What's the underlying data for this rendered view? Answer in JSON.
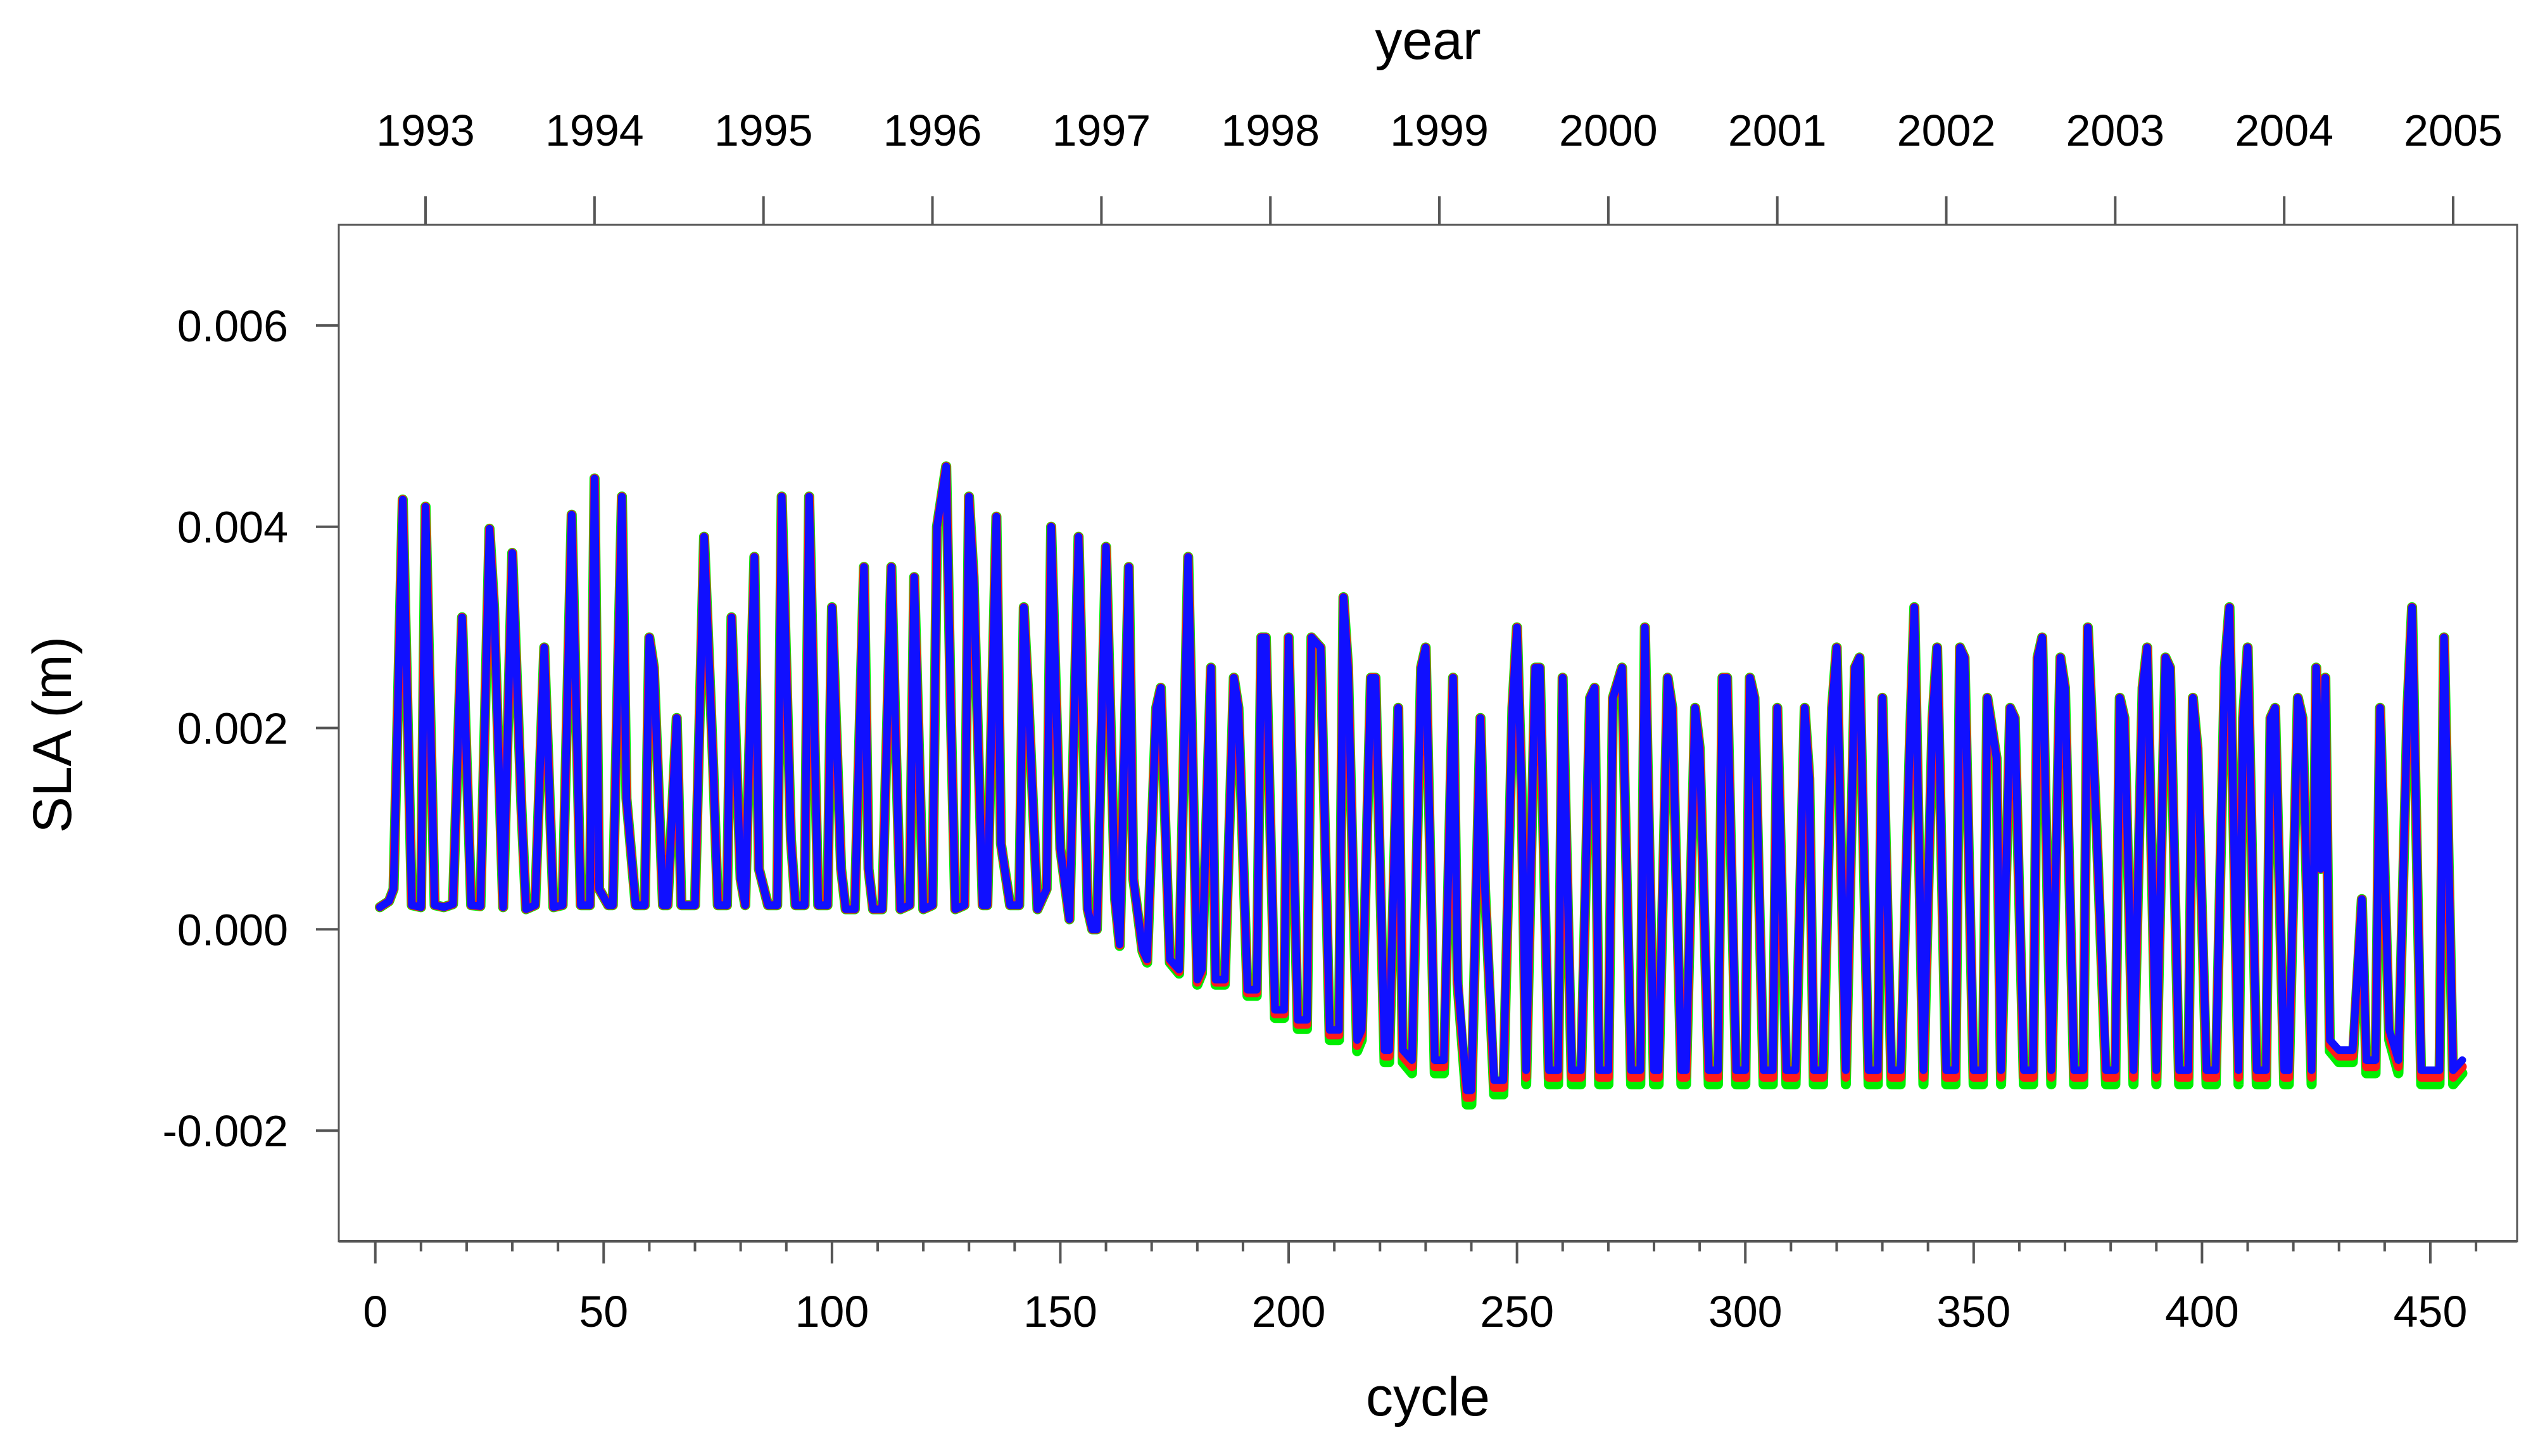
{
  "chart_data": {
    "type": "line",
    "xlabel": "cycle",
    "ylabel": "SLA (m)",
    "top_axis_label": "year",
    "xlim": [
      -8,
      469
    ],
    "ylim": [
      -0.0031,
      0.007
    ],
    "x_ticks": [
      0,
      50,
      100,
      150,
      200,
      250,
      300,
      350,
      400,
      450
    ],
    "y_ticks": [
      -0.002,
      0.0,
      0.002,
      0.004,
      0.006
    ],
    "y_tick_labels": [
      "-0.002",
      "0.000",
      "0.002",
      "0.004",
      "0.006"
    ],
    "top_ticks": [
      {
        "label": "1993",
        "cycle": 11
      },
      {
        "label": "1994",
        "cycle": 48
      },
      {
        "label": "1995",
        "cycle": 85
      },
      {
        "label": "1996",
        "cycle": 122
      },
      {
        "label": "1997",
        "cycle": 159
      },
      {
        "label": "1998",
        "cycle": 196
      },
      {
        "label": "1999",
        "cycle": 233
      },
      {
        "label": "2000",
        "cycle": 270
      },
      {
        "label": "2001",
        "cycle": 307
      },
      {
        "label": "2002",
        "cycle": 344
      },
      {
        "label": "2003",
        "cycle": 381
      },
      {
        "label": "2004",
        "cycle": 418
      },
      {
        "label": "2005",
        "cycle": 455
      }
    ],
    "grid": false,
    "legend": "none",
    "series": [
      {
        "color": "#00ee00",
        "y_offset": -0.00014,
        "width": 16,
        "points": [
          [
            1,
            0.00022
          ],
          [
            3,
            0.00028
          ],
          [
            4,
            0.0004
          ],
          [
            6,
            0.00427
          ],
          [
            8,
            0.00024
          ],
          [
            10,
            0.00022
          ],
          [
            11,
            0.0042
          ],
          [
            13,
            0.00024
          ],
          [
            15,
            0.00022
          ],
          [
            17,
            0.00025
          ],
          [
            19,
            0.0031
          ],
          [
            21,
            0.00024
          ],
          [
            23,
            0.00023
          ],
          [
            25,
            0.00398
          ],
          [
            26,
            0.0032
          ],
          [
            28,
            0.00022
          ],
          [
            30,
            0.00374
          ],
          [
            32,
            0.0012
          ],
          [
            33,
            0.0002
          ],
          [
            35,
            0.00024
          ],
          [
            37,
            0.0028
          ],
          [
            39,
            0.00022
          ],
          [
            41,
            0.00024
          ],
          [
            43,
            0.00412
          ],
          [
            45,
            0.00024
          ],
          [
            47,
            0.00024
          ],
          [
            48,
            0.00448
          ],
          [
            49,
            0.0004
          ],
          [
            51,
            0.00024
          ],
          [
            52,
            0.00024
          ],
          [
            54,
            0.0043
          ],
          [
            55,
            0.0013
          ],
          [
            57,
            0.00024
          ],
          [
            59,
            0.00024
          ],
          [
            60,
            0.0029
          ],
          [
            61,
            0.0026
          ],
          [
            63,
            0.00024
          ],
          [
            64,
            0.00024
          ],
          [
            66,
            0.0021
          ],
          [
            67,
            0.00024
          ],
          [
            69,
            0.00024
          ],
          [
            70,
            0.00024
          ],
          [
            72,
            0.0039
          ],
          [
            74,
            0.0016
          ],
          [
            75,
            0.00024
          ],
          [
            77,
            0.00024
          ],
          [
            78,
            0.0031
          ],
          [
            80,
            0.0005
          ],
          [
            81,
            0.00024
          ],
          [
            83,
            0.0037
          ],
          [
            84,
            0.0006
          ],
          [
            86,
            0.00024
          ],
          [
            88,
            0.00024
          ],
          [
            89,
            0.0043
          ],
          [
            91,
            0.0009
          ],
          [
            92,
            0.00024
          ],
          [
            94,
            0.00024
          ],
          [
            95,
            0.0043
          ],
          [
            97,
            0.00024
          ],
          [
            99,
            0.00024
          ],
          [
            100,
            0.0032
          ],
          [
            102,
            0.0006
          ],
          [
            103,
            0.0002
          ],
          [
            105,
            0.0002
          ],
          [
            107,
            0.0036
          ],
          [
            108,
            0.0006
          ],
          [
            109,
            0.0002
          ],
          [
            111,
            0.0002
          ],
          [
            113,
            0.0036
          ],
          [
            114,
            0.0018
          ],
          [
            115,
            0.0002
          ],
          [
            117,
            0.00024
          ],
          [
            118,
            0.0035
          ],
          [
            120,
            0.0002
          ],
          [
            122,
            0.00024
          ],
          [
            123,
            0.004
          ],
          [
            125,
            0.0046
          ],
          [
            126,
            0.0022
          ],
          [
            127,
            0.0002
          ],
          [
            129,
            0.00024
          ],
          [
            130,
            0.0043
          ],
          [
            131,
            0.0035
          ],
          [
            133,
            0.00024
          ],
          [
            134,
            0.00024
          ],
          [
            136,
            0.0041
          ],
          [
            137,
            0.00085
          ],
          [
            139,
            0.00024
          ],
          [
            141,
            0.00024
          ],
          [
            142,
            0.0032
          ],
          [
            143,
            0.0023
          ],
          [
            145,
            0.0002
          ],
          [
            147,
            0.0004
          ],
          [
            148,
            0.004
          ],
          [
            150,
            0.0008
          ],
          [
            152,
            0.0001
          ],
          [
            154,
            0.0039
          ],
          [
            156,
            0.0002
          ],
          [
            157,
            0.0
          ],
          [
            158,
            0.0
          ],
          [
            160,
            0.0038
          ],
          [
            162,
            0.0003
          ],
          [
            163,
            -0.00015
          ],
          [
            165,
            0.0036
          ],
          [
            166,
            0.0005
          ],
          [
            168,
            -0.0002
          ],
          [
            169,
            -0.0003
          ],
          [
            171,
            0.0022
          ],
          [
            172,
            0.0024
          ],
          [
            174,
            -0.0003
          ],
          [
            176,
            -0.0004
          ],
          [
            178,
            0.0037
          ],
          [
            180,
            -0.0005
          ],
          [
            181,
            -0.0004
          ],
          [
            183,
            0.0026
          ],
          [
            184,
            -0.0005
          ],
          [
            186,
            -0.0005
          ],
          [
            188,
            0.0025
          ],
          [
            189,
            0.0022
          ],
          [
            191,
            -0.0006
          ],
          [
            193,
            -0.0006
          ],
          [
            194,
            0.0029
          ],
          [
            195,
            0.0029
          ],
          [
            197,
            -0.0008
          ],
          [
            199,
            -0.0008
          ],
          [
            200,
            0.0029
          ],
          [
            202,
            -0.0009
          ],
          [
            204,
            -0.0009
          ],
          [
            205,
            0.0029
          ],
          [
            207,
            0.0028
          ],
          [
            209,
            -0.001
          ],
          [
            211,
            -0.001
          ],
          [
            212,
            0.0033
          ],
          [
            213,
            0.0026
          ],
          [
            215,
            -0.0011
          ],
          [
            216,
            -0.001
          ],
          [
            218,
            0.0025
          ],
          [
            219,
            0.0025
          ],
          [
            221,
            -0.0012
          ],
          [
            222,
            -0.0012
          ],
          [
            224,
            0.0022
          ],
          [
            225,
            -0.0012
          ],
          [
            227,
            -0.0013
          ],
          [
            229,
            0.0026
          ],
          [
            230,
            0.0028
          ],
          [
            232,
            -0.0013
          ],
          [
            234,
            -0.0013
          ],
          [
            236,
            0.0025
          ],
          [
            237,
            -0.0005
          ],
          [
            239,
            -0.0016
          ],
          [
            240,
            -0.0016
          ],
          [
            242,
            0.0021
          ],
          [
            243,
            0.0004
          ],
          [
            245,
            -0.0015
          ],
          [
            247,
            -0.0015
          ],
          [
            249,
            0.0022
          ],
          [
            250,
            0.003
          ],
          [
            251,
            0.0014
          ],
          [
            252,
            -0.0014
          ],
          [
            254,
            0.0026
          ],
          [
            255,
            0.0026
          ],
          [
            257,
            -0.0014
          ],
          [
            259,
            -0.0014
          ],
          [
            260,
            0.0025
          ],
          [
            262,
            -0.0014
          ],
          [
            264,
            -0.0014
          ],
          [
            266,
            0.0023
          ],
          [
            267,
            0.0024
          ],
          [
            268,
            -0.0014
          ],
          [
            270,
            -0.0014
          ],
          [
            271,
            0.0023
          ],
          [
            273,
            0.0026
          ],
          [
            275,
            -0.0014
          ],
          [
            277,
            -0.0014
          ],
          [
            278,
            0.003
          ],
          [
            280,
            -0.0014
          ],
          [
            281,
            -0.0014
          ],
          [
            283,
            0.0025
          ],
          [
            284,
            0.0022
          ],
          [
            286,
            -0.0014
          ],
          [
            287,
            -0.0014
          ],
          [
            289,
            0.0022
          ],
          [
            290,
            0.0018
          ],
          [
            292,
            -0.0014
          ],
          [
            294,
            -0.0014
          ],
          [
            295,
            0.0025
          ],
          [
            296,
            0.0025
          ],
          [
            298,
            -0.0014
          ],
          [
            300,
            -0.0014
          ],
          [
            301,
            0.0025
          ],
          [
            302,
            0.0023
          ],
          [
            304,
            -0.0014
          ],
          [
            306,
            -0.0014
          ],
          [
            307,
            0.0022
          ],
          [
            309,
            -0.0014
          ],
          [
            311,
            -0.0014
          ],
          [
            313,
            0.0022
          ],
          [
            314,
            0.0015
          ],
          [
            315,
            -0.0014
          ],
          [
            317,
            -0.0014
          ],
          [
            319,
            0.0022
          ],
          [
            320,
            0.0028
          ],
          [
            322,
            -0.0014
          ],
          [
            324,
            0.0026
          ],
          [
            325,
            0.0027
          ],
          [
            327,
            -0.0014
          ],
          [
            329,
            -0.0014
          ],
          [
            330,
            0.0023
          ],
          [
            332,
            -0.0014
          ],
          [
            334,
            -0.0014
          ],
          [
            336,
            0.0018
          ],
          [
            337,
            0.0032
          ],
          [
            339,
            -0.0014
          ],
          [
            341,
            0.0021
          ],
          [
            342,
            0.0028
          ],
          [
            344,
            -0.0014
          ],
          [
            346,
            -0.0014
          ],
          [
            347,
            0.0028
          ],
          [
            348,
            0.0027
          ],
          [
            350,
            -0.0014
          ],
          [
            352,
            -0.0014
          ],
          [
            353,
            0.0023
          ],
          [
            355,
            0.0017
          ],
          [
            356,
            -0.0014
          ],
          [
            358,
            0.0022
          ],
          [
            359,
            0.0021
          ],
          [
            361,
            -0.0014
          ],
          [
            363,
            -0.0014
          ],
          [
            364,
            0.0027
          ],
          [
            365,
            0.0029
          ],
          [
            367,
            -0.0014
          ],
          [
            369,
            0.0027
          ],
          [
            370,
            0.0024
          ],
          [
            372,
            -0.0014
          ],
          [
            374,
            -0.0014
          ],
          [
            375,
            0.003
          ],
          [
            377,
            0.0009
          ],
          [
            379,
            -0.0014
          ],
          [
            381,
            -0.0014
          ],
          [
            382,
            0.0023
          ],
          [
            383,
            0.0021
          ],
          [
            385,
            -0.0014
          ],
          [
            387,
            0.0024
          ],
          [
            388,
            0.0028
          ],
          [
            390,
            -0.0014
          ],
          [
            392,
            0.0027
          ],
          [
            393,
            0.0026
          ],
          [
            395,
            -0.0014
          ],
          [
            397,
            -0.0014
          ],
          [
            398,
            0.0023
          ],
          [
            399,
            0.0018
          ],
          [
            401,
            -0.0014
          ],
          [
            403,
            -0.0014
          ],
          [
            405,
            0.0026
          ],
          [
            406,
            0.0032
          ],
          [
            408,
            -0.0014
          ],
          [
            409,
            0.0021
          ],
          [
            410,
            0.0028
          ],
          [
            412,
            -0.0014
          ],
          [
            414,
            -0.0014
          ],
          [
            415,
            0.0021
          ],
          [
            416,
            0.0022
          ],
          [
            418,
            -0.0014
          ],
          [
            419,
            -0.0014
          ],
          [
            421,
            0.0023
          ],
          [
            422,
            0.0021
          ],
          [
            424,
            -0.0014
          ],
          [
            425,
            0.0026
          ],
          [
            426,
            0.0006
          ],
          [
            427,
            0.0025
          ],
          [
            428,
            -0.0011
          ],
          [
            430,
            -0.0012
          ],
          [
            432,
            -0.0012
          ],
          [
            433,
            -0.0012
          ],
          [
            435,
            0.0003
          ],
          [
            436,
            -0.0013
          ],
          [
            438,
            -0.0013
          ],
          [
            439,
            0.0022
          ],
          [
            441,
            -0.001
          ],
          [
            443,
            -0.0013
          ],
          [
            445,
            0.0022
          ],
          [
            446,
            0.0032
          ],
          [
            448,
            -0.0014
          ],
          [
            450,
            -0.0014
          ],
          [
            452,
            -0.0014
          ],
          [
            453,
            0.0029
          ],
          [
            455,
            -0.0014
          ],
          [
            457,
            -0.0013
          ]
        ]
      },
      {
        "color": "#ff1a1a",
        "y_offset": -7e-05,
        "width": 14,
        "points": "same-as-blue"
      },
      {
        "color": "#1010ff",
        "y_offset": 0,
        "width": 12,
        "points": "same-as-green"
      }
    ]
  }
}
